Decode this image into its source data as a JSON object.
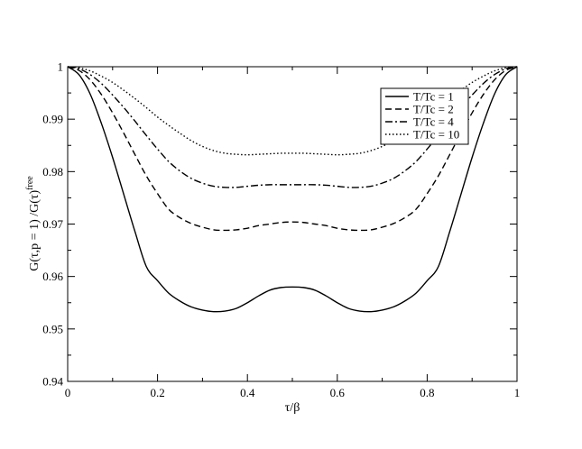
{
  "chart_data": {
    "type": "line",
    "title": "",
    "xlabel": "τ/β",
    "ylabel_main": "G(τ,p = 1)  /G(τ)",
    "ylabel_sup": "free",
    "xlim": [
      0,
      1
    ],
    "ylim": [
      0.94,
      1
    ],
    "xticks": [
      0,
      0.2,
      0.4,
      0.6,
      0.8,
      1
    ],
    "xtick_labels": [
      "0",
      "0.2",
      "0.4",
      "0.6",
      "0.8",
      "1"
    ],
    "yticks": [
      0.94,
      0.95,
      0.96,
      0.97,
      0.98,
      0.99,
      1
    ],
    "ytick_labels": [
      "0.94",
      "0.95",
      "0.96",
      "0.97",
      "0.98",
      "0.99",
      "1"
    ],
    "grid": false,
    "legend_position": "top-right",
    "x": [
      0,
      0.025,
      0.05,
      0.075,
      0.1,
      0.125,
      0.15,
      0.175,
      0.2,
      0.225,
      0.25,
      0.275,
      0.3,
      0.325,
      0.35,
      0.375,
      0.4,
      0.425,
      0.45,
      0.475,
      0.5,
      0.525,
      0.55,
      0.575,
      0.6,
      0.625,
      0.65,
      0.675,
      0.7,
      0.725,
      0.75,
      0.775,
      0.8,
      0.825,
      0.85,
      0.875,
      0.9,
      0.925,
      0.95,
      0.975,
      1
    ],
    "series": [
      {
        "name": "T/Tc = 1",
        "dash": "solid",
        "values": [
          1,
          0.9985,
          0.9948,
          0.9892,
          0.9827,
          0.9756,
          0.9685,
          0.9619,
          0.9592,
          0.9568,
          0.9553,
          0.9542,
          0.9536,
          0.9533,
          0.9534,
          0.9539,
          0.955,
          0.9563,
          0.9574,
          0.9579,
          0.958,
          0.9579,
          0.9574,
          0.9563,
          0.955,
          0.9539,
          0.9534,
          0.9533,
          0.9536,
          0.9542,
          0.9553,
          0.9568,
          0.9592,
          0.9619,
          0.9685,
          0.9756,
          0.9827,
          0.9892,
          0.9948,
          0.9985,
          1
        ]
      },
      {
        "name": "T/Tc = 2",
        "dash": "dashed",
        "values": [
          1,
          0.9993,
          0.9975,
          0.9947,
          0.9912,
          0.9873,
          0.9832,
          0.9792,
          0.9758,
          0.9728,
          0.9712,
          0.9701,
          0.9694,
          0.9689,
          0.9688,
          0.9689,
          0.9692,
          0.9697,
          0.97,
          0.9703,
          0.9704,
          0.9703,
          0.97,
          0.9697,
          0.9692,
          0.9689,
          0.9688,
          0.9689,
          0.9694,
          0.9701,
          0.9712,
          0.9728,
          0.9758,
          0.9792,
          0.9832,
          0.9873,
          0.9912,
          0.9947,
          0.9975,
          0.9993,
          1
        ]
      },
      {
        "name": "T/Tc = 4",
        "dash": "dashdot",
        "values": [
          1,
          0.9996,
          0.9985,
          0.9968,
          0.9946,
          0.9922,
          0.9896,
          0.9869,
          0.9843,
          0.9819,
          0.9801,
          0.9787,
          0.9778,
          0.9772,
          0.977,
          0.977,
          0.9772,
          0.9774,
          0.9775,
          0.9775,
          0.9775,
          0.9775,
          0.9775,
          0.9774,
          0.9772,
          0.977,
          0.977,
          0.9772,
          0.9778,
          0.9787,
          0.9801,
          0.9819,
          0.9843,
          0.9869,
          0.9896,
          0.9922,
          0.9946,
          0.9968,
          0.9985,
          0.9996,
          1
        ]
      },
      {
        "name": "T/Tc = 10",
        "dash": "dotted",
        "values": [
          1,
          0.9998,
          0.9992,
          0.9982,
          0.997,
          0.9955,
          0.9939,
          0.9922,
          0.9904,
          0.9888,
          0.9873,
          0.9859,
          0.9848,
          0.984,
          0.9835,
          0.9833,
          0.9832,
          0.9833,
          0.9834,
          0.9835,
          0.9835,
          0.9835,
          0.9834,
          0.9833,
          0.9832,
          0.9833,
          0.9835,
          0.984,
          0.9848,
          0.9859,
          0.9873,
          0.9888,
          0.9904,
          0.9922,
          0.9939,
          0.9955,
          0.997,
          0.9982,
          0.9992,
          0.9998,
          1
        ]
      }
    ]
  }
}
